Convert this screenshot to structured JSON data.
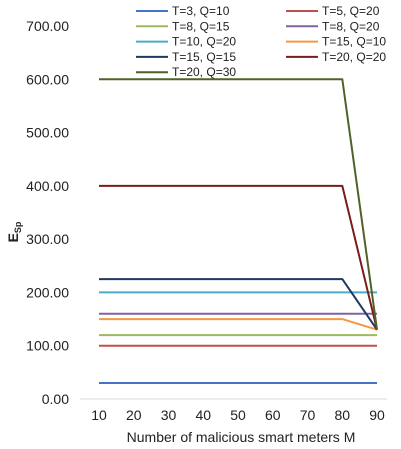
{
  "chart_data": {
    "type": "line",
    "title": "",
    "xlabel": "Number of malicious smart meters M",
    "ylabel_main": "E",
    "ylabel_sub": "Sp",
    "x": [
      10,
      20,
      30,
      40,
      50,
      60,
      70,
      80,
      90
    ],
    "x_ticks": [
      "10",
      "20",
      "30",
      "40",
      "50",
      "60",
      "70",
      "80",
      "90"
    ],
    "ylim": [
      0,
      700
    ],
    "y_ticks": [
      "0.00",
      "100.00",
      "200.00",
      "300.00",
      "400.00",
      "500.00",
      "600.00",
      "700.00"
    ],
    "grid": false,
    "legend_position": "top",
    "series": [
      {
        "name": "T=3, Q=10",
        "color": "#4472c4",
        "values": [
          30,
          30,
          30,
          30,
          30,
          30,
          30,
          30,
          30
        ]
      },
      {
        "name": "T=5, Q=20",
        "color": "#c0504d",
        "values": [
          100,
          100,
          100,
          100,
          100,
          100,
          100,
          100,
          100
        ]
      },
      {
        "name": "T=8, Q=15",
        "color": "#9bbb59",
        "values": [
          120,
          120,
          120,
          120,
          120,
          120,
          120,
          120,
          120
        ]
      },
      {
        "name": "T=8, Q=20",
        "color": "#8064a2",
        "values": [
          160,
          160,
          160,
          160,
          160,
          160,
          160,
          160,
          160
        ]
      },
      {
        "name": "T=10, Q=20",
        "color": "#4bacc6",
        "values": [
          200,
          200,
          200,
          200,
          200,
          200,
          200,
          200,
          200
        ]
      },
      {
        "name": "T=15, Q=10",
        "color": "#f79646",
        "values": [
          150,
          150,
          150,
          150,
          150,
          150,
          150,
          150,
          130
        ]
      },
      {
        "name": "T=15, Q=15",
        "color": "#1f3864",
        "values": [
          225,
          225,
          225,
          225,
          225,
          225,
          225,
          225,
          130
        ]
      },
      {
        "name": "T=20, Q=20",
        "color": "#7b1c1c",
        "values": [
          400,
          400,
          400,
          400,
          400,
          400,
          400,
          400,
          130
        ]
      },
      {
        "name": "T=20, Q=30",
        "color": "#4f6228",
        "values": [
          600,
          600,
          600,
          600,
          600,
          600,
          600,
          600,
          130
        ]
      }
    ]
  }
}
